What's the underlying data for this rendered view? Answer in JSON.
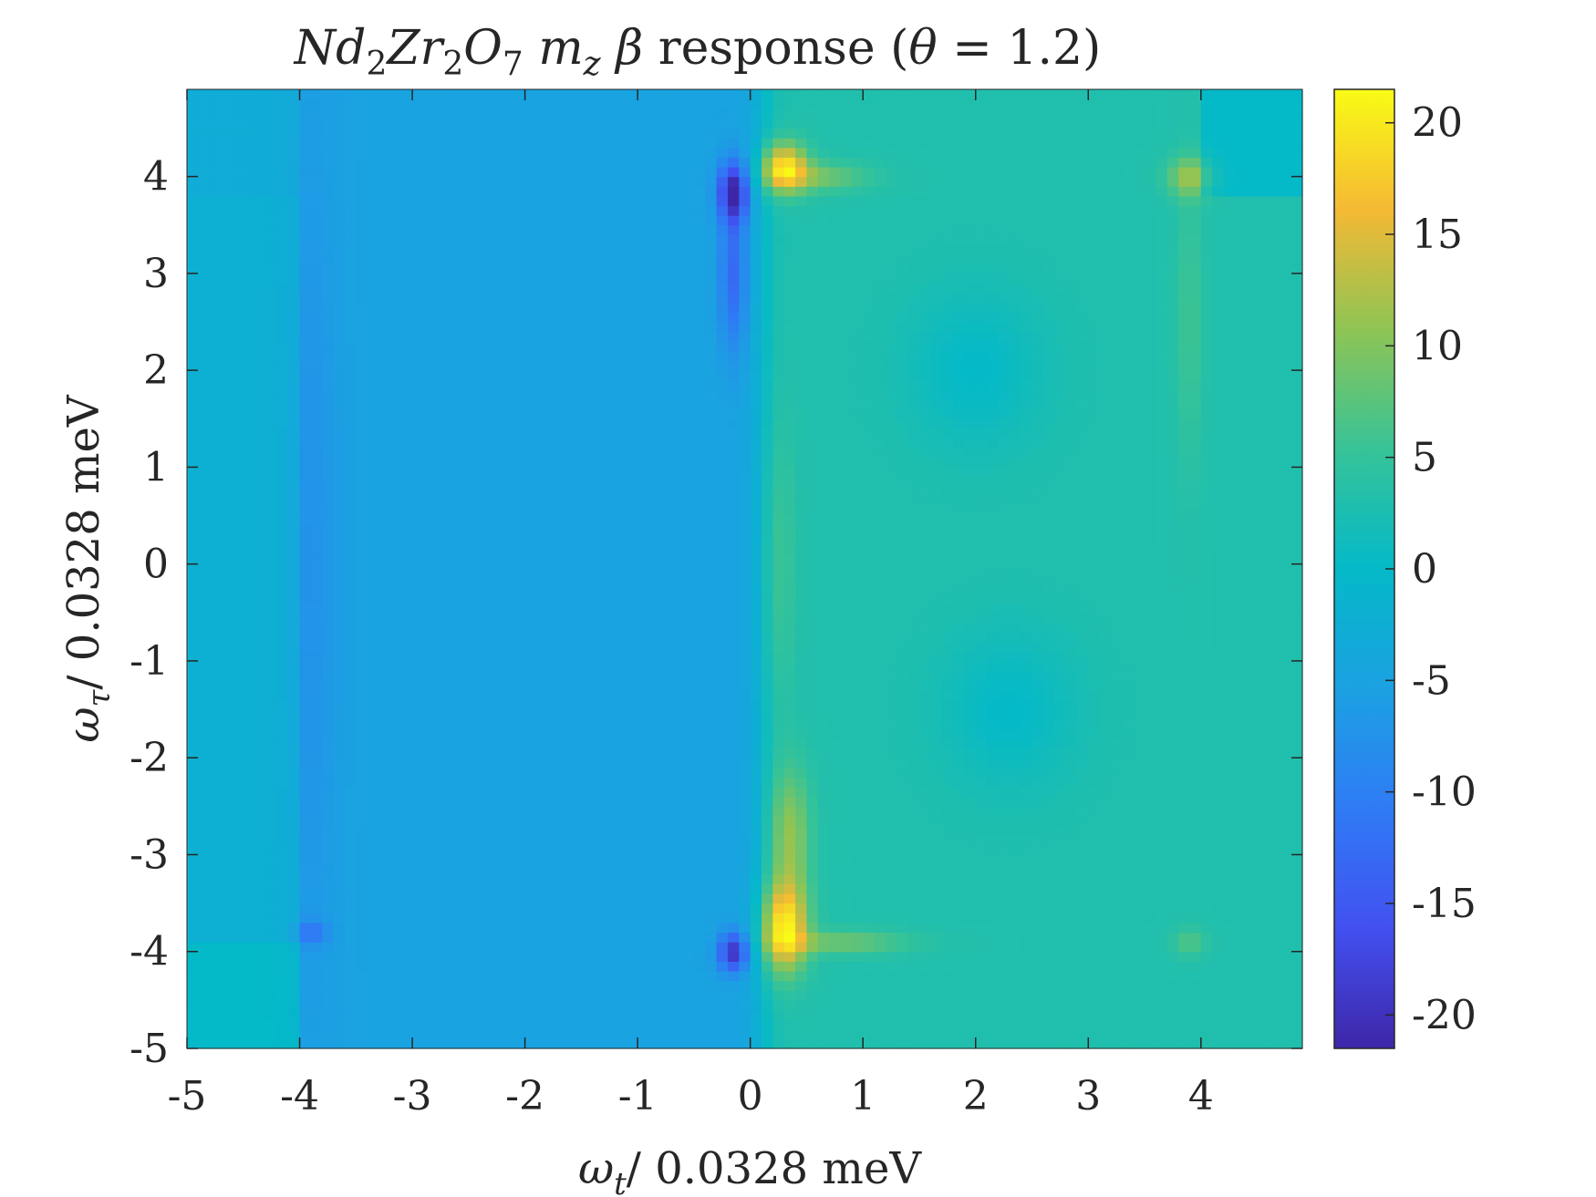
{
  "chart_data": {
    "type": "heatmap",
    "title": {
      "pre": "Nd",
      "s1": "2",
      "mid1": "Zr",
      "s2": "2",
      "mid2": "O",
      "s3": "7",
      "m": "m",
      "msub": "z",
      "beta": "β",
      "rest": " response (",
      "theta": "θ",
      "eq": " = 1.2)"
    },
    "xlabel": {
      "sym": "ω",
      "sub": "t",
      "text": "/ 0.0328 meV"
    },
    "ylabel": {
      "sym": "ω",
      "sub": "τ",
      "text": "/ 0.0328 meV"
    },
    "xlim": [
      -5,
      4.9
    ],
    "ylim": [
      -5,
      4.9
    ],
    "xticks": [
      "-5",
      "-4",
      "-3",
      "-2",
      "-1",
      "0",
      "1",
      "2",
      "3",
      "4"
    ],
    "yticks": [
      "-5",
      "-4",
      "-3",
      "-2",
      "-1",
      "0",
      "1",
      "2",
      "3",
      "4"
    ],
    "colorbar": {
      "colormap": "parula",
      "clim": [
        -21.5,
        21.5
      ],
      "ticks": [
        "20",
        "15",
        "10",
        "5",
        "0",
        "-5",
        "-10",
        "-15",
        "-20"
      ]
    },
    "features": [
      {
        "x": -0.15,
        "y": 3.85,
        "value": -21,
        "kind": "min"
      },
      {
        "x": -0.15,
        "y": -4.0,
        "value": -20,
        "kind": "min"
      },
      {
        "x": 0.3,
        "y": 4.1,
        "value": 20,
        "kind": "max"
      },
      {
        "x": 0.3,
        "y": -3.75,
        "value": 21,
        "kind": "max"
      },
      {
        "x": 3.9,
        "y": 4.0,
        "value": 12,
        "kind": "max"
      },
      {
        "x": -3.9,
        "y": -3.8,
        "value": -12,
        "kind": "min"
      },
      {
        "x": 3.9,
        "y": -3.9,
        "value": 6,
        "kind": "max"
      }
    ],
    "grid": false
  }
}
